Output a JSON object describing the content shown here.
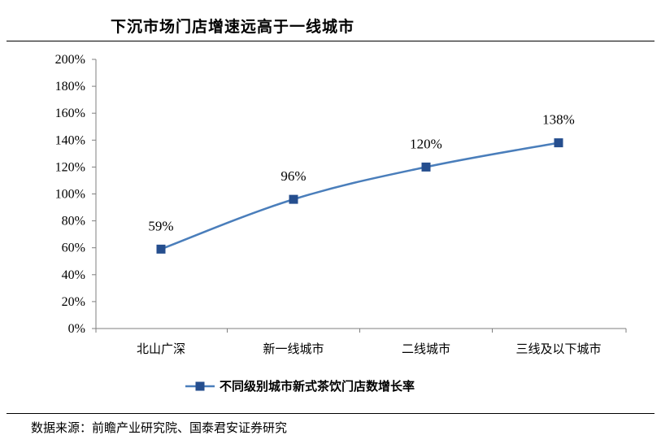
{
  "title": "下沉市场门店增速远高于一线城市",
  "source": "数据来源：前瞻产业研究院、国泰君安证券研究",
  "colors": {
    "series": "#4A7EBB",
    "marker": "#254E8E",
    "axis": "#7F7F7F"
  },
  "chart_data": {
    "type": "line",
    "categories": [
      "北山广深",
      "新一线城市",
      "二线城市",
      "三线及以下城市"
    ],
    "series": [
      {
        "name": "不同级别城市新式茶饮门店数增长率",
        "values": [
          59,
          96,
          120,
          138
        ],
        "labels": [
          "59%",
          "96%",
          "120%",
          "138%"
        ]
      }
    ],
    "ylim": [
      0,
      200
    ],
    "yticks": [
      0,
      20,
      40,
      60,
      80,
      100,
      120,
      140,
      160,
      180,
      200
    ],
    "ytick_labels": [
      "0%",
      "20%",
      "40%",
      "60%",
      "80%",
      "100%",
      "120%",
      "140%",
      "160%",
      "180%",
      "200%"
    ],
    "legend": "bottom",
    "grid": false
  }
}
